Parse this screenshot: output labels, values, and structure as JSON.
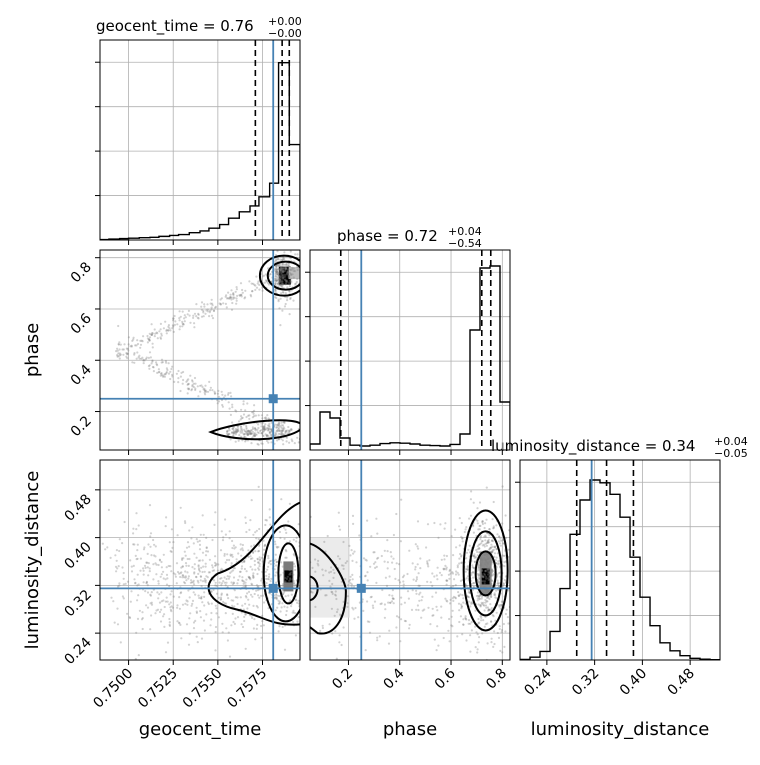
{
  "chart_data": {
    "type": "corner",
    "parameters": [
      "geocent_time",
      "phase",
      "luminosity_distance"
    ],
    "axis_labels": {
      "x": [
        "geocent_time",
        "phase",
        "luminosity_distance"
      ],
      "y": [
        "phase",
        "luminosity_distance"
      ]
    },
    "titles": [
      {
        "param": "geocent_time",
        "text": "geocent_time = 0.76",
        "plus": "+0.00",
        "minus": "−0.00"
      },
      {
        "param": "phase",
        "text": "phase = 0.72",
        "plus": "+0.04",
        "minus": "−0.54"
      },
      {
        "param": "luminosity_distance",
        "text": "luminosity_distance = 0.34",
        "plus": "+0.04",
        "minus": "−0.05"
      }
    ],
    "ranges": {
      "geocent_time": [
        0.7484,
        0.7596
      ],
      "phase": [
        0.05,
        0.83
      ],
      "luminosity_distance": [
        0.195,
        0.53
      ]
    },
    "ticks": {
      "geocent_time": [
        "0.7500",
        "0.7525",
        "0.7550",
        "0.7575"
      ],
      "phase": [
        "0.2",
        "0.4",
        "0.6",
        "0.8"
      ],
      "luminosity_distance": [
        "0.24",
        "0.32",
        "0.40",
        "0.48"
      ]
    },
    "truths": {
      "geocent_time": 0.7581,
      "phase": 0.25,
      "luminosity_distance": 0.315
    },
    "quantiles": {
      "geocent_time": [
        0.7571,
        0.7586,
        0.759
      ],
      "phase": [
        0.17,
        0.72,
        0.755
      ],
      "luminosity_distance": [
        0.29,
        0.34,
        0.385
      ]
    },
    "histograms": {
      "geocent_time": {
        "bins": [
          0.7484,
          0.7489,
          0.7495,
          0.75,
          0.7506,
          0.7512,
          0.7517,
          0.7523,
          0.7528,
          0.7534,
          0.754,
          0.7545,
          0.7551,
          0.7556,
          0.7562,
          0.7568,
          0.7573,
          0.7579,
          0.7584,
          0.759,
          0.7596
        ],
        "counts": [
          1,
          2,
          3,
          4,
          5,
          6,
          8,
          10,
          12,
          16,
          20,
          26,
          34,
          48,
          62,
          75,
          95,
          125,
          390,
          210
        ]
      },
      "phase": {
        "bins": [
          0.05,
          0.089,
          0.128,
          0.167,
          0.206,
          0.245,
          0.284,
          0.323,
          0.362,
          0.401,
          0.44,
          0.479,
          0.518,
          0.557,
          0.596,
          0.635,
          0.674,
          0.713,
          0.752,
          0.791,
          0.83
        ],
        "counts": [
          15,
          95,
          80,
          30,
          12,
          10,
          12,
          16,
          18,
          17,
          15,
          12,
          11,
          10,
          14,
          40,
          300,
          455,
          460,
          120
        ]
      },
      "luminosity_distance": {
        "bins": [
          0.195,
          0.2118,
          0.2285,
          0.2453,
          0.262,
          0.2788,
          0.2955,
          0.3123,
          0.329,
          0.3458,
          0.3625,
          0.3793,
          0.396,
          0.4128,
          0.4295,
          0.4463,
          0.463,
          0.4798,
          0.4965,
          0.5133,
          0.53
        ],
        "counts": [
          2,
          10,
          30,
          100,
          250,
          440,
          560,
          630,
          620,
          580,
          500,
          360,
          220,
          120,
          60,
          32,
          15,
          6,
          3,
          1
        ]
      }
    },
    "axis_range_labels": "lower-left",
    "grid": true,
    "truth_color": "#4682b4",
    "contour_color": "#000000",
    "sample_color": "#7f7f7f"
  }
}
